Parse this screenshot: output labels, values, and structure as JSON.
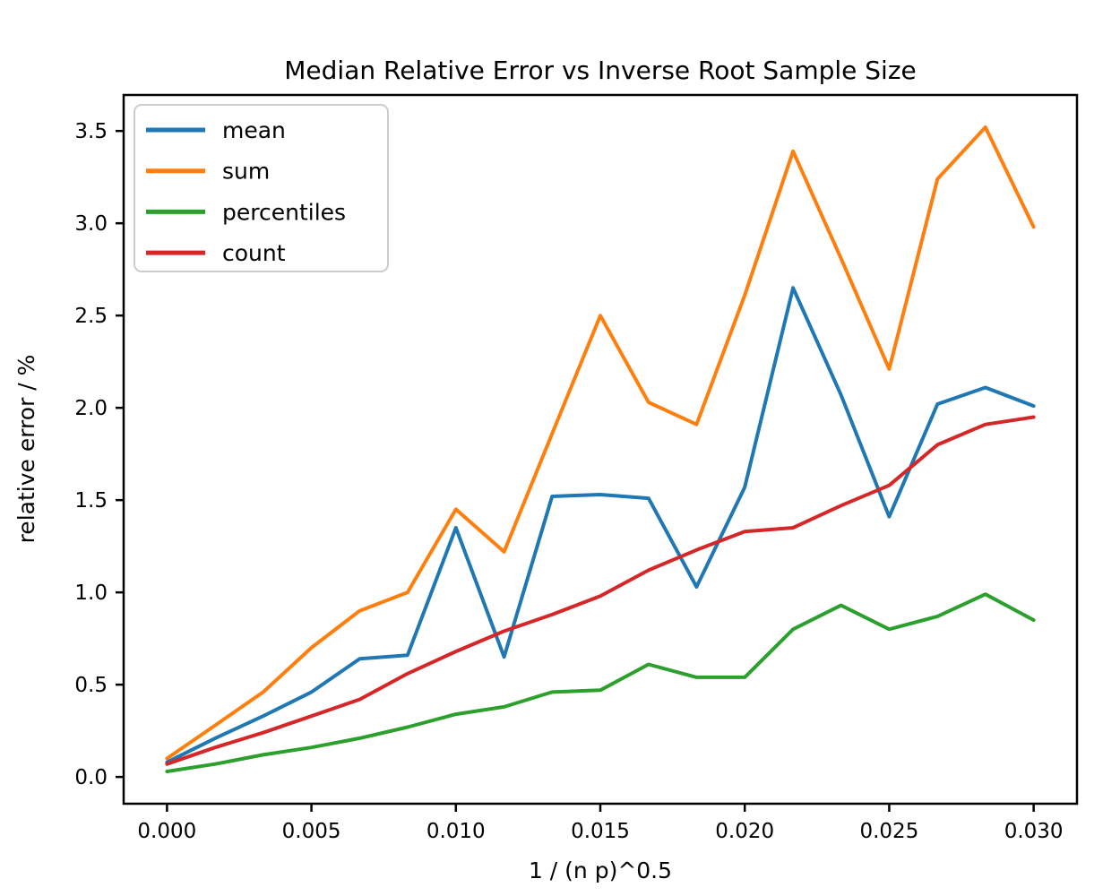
{
  "figure": {
    "title": "Median Relative Error vs Inverse Root Sample Size",
    "xlabel": "1 / (n p)^0.5",
    "ylabel": "relative error / %"
  },
  "colors": {
    "background": "#ffffff",
    "spine": "#000000",
    "text": "#000000",
    "legend_border": "#cccccc",
    "series_mean": "#1f77b4",
    "series_sum": "#ff7f0e",
    "series_percentiles": "#2ca02c",
    "series_count": "#d62728"
  },
  "chart_data": {
    "type": "line",
    "title": "Median Relative Error vs Inverse Root Sample Size",
    "xlabel": "1 / (n p)^0.5",
    "ylabel": "relative error / %",
    "grid": false,
    "xlim": [
      -0.0015,
      0.0315
    ],
    "ylim": [
      -0.145,
      3.695
    ],
    "xticks": {
      "values": [
        0.0,
        0.005,
        0.01,
        0.015,
        0.02,
        0.025,
        0.03
      ],
      "labels": [
        "0.000",
        "0.005",
        "0.010",
        "0.015",
        "0.020",
        "0.025",
        "0.030"
      ]
    },
    "yticks": {
      "values": [
        0.0,
        0.5,
        1.0,
        1.5,
        2.0,
        2.5,
        3.0,
        3.5
      ],
      "labels": [
        "0.0",
        "0.5",
        "1.0",
        "1.5",
        "2.0",
        "2.5",
        "3.0",
        "3.5"
      ]
    },
    "legend": {
      "position": "upper left",
      "entries": [
        "mean",
        "sum",
        "percentiles",
        "count"
      ]
    },
    "x": [
      0.0,
      0.00167,
      0.00333,
      0.005,
      0.00667,
      0.00833,
      0.01,
      0.01167,
      0.01333,
      0.015,
      0.01667,
      0.01833,
      0.02,
      0.02167,
      0.02333,
      0.025,
      0.02667,
      0.02833,
      0.03
    ],
    "series": [
      {
        "name": "mean",
        "color": "#1f77b4",
        "values": [
          0.08,
          0.21,
          0.33,
          0.46,
          0.64,
          0.66,
          1.35,
          0.65,
          1.52,
          1.53,
          1.51,
          1.03,
          1.57,
          2.65,
          2.07,
          1.41,
          2.02,
          2.11,
          2.01
        ]
      },
      {
        "name": "sum",
        "color": "#ff7f0e",
        "values": [
          0.1,
          0.28,
          0.46,
          0.7,
          0.9,
          1.0,
          1.45,
          1.22,
          1.86,
          2.5,
          2.03,
          1.91,
          2.61,
          3.39,
          2.81,
          2.21,
          3.24,
          3.52,
          2.98
        ]
      },
      {
        "name": "percentiles",
        "color": "#2ca02c",
        "values": [
          0.03,
          0.07,
          0.12,
          0.16,
          0.21,
          0.27,
          0.34,
          0.38,
          0.46,
          0.47,
          0.61,
          0.54,
          0.54,
          0.8,
          0.93,
          0.8,
          0.87,
          0.99,
          0.85
        ]
      },
      {
        "name": "count",
        "color": "#d62728",
        "values": [
          0.07,
          0.16,
          0.24,
          0.33,
          0.42,
          0.56,
          0.68,
          0.79,
          0.88,
          0.98,
          1.12,
          1.23,
          1.33,
          1.35,
          1.47,
          1.58,
          1.8,
          1.91,
          1.95
        ]
      }
    ]
  }
}
